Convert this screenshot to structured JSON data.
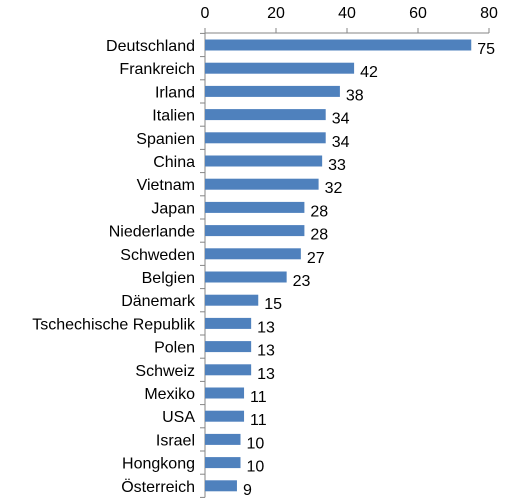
{
  "chart_data": {
    "type": "bar",
    "orientation": "horizontal",
    "x_axis_position": "top",
    "xlim": [
      0,
      80
    ],
    "xticks": [
      0,
      20,
      40,
      60,
      80
    ],
    "grid": false,
    "title": "",
    "xlabel": "",
    "ylabel": "",
    "categories": [
      "Deutschland",
      "Frankreich",
      "Irland",
      "Italien",
      "Spanien",
      "China",
      "Vietnam",
      "Japan",
      "Niederlande",
      "Schweden",
      "Belgien",
      "Dänemark",
      "Tschechische Republik",
      "Polen",
      "Schweiz",
      "Mexiko",
      "USA",
      "Israel",
      "Hongkong",
      "Österreich"
    ],
    "values": [
      75,
      42,
      38,
      34,
      34,
      33,
      32,
      28,
      28,
      27,
      23,
      15,
      13,
      13,
      13,
      11,
      11,
      10,
      10,
      9
    ],
    "bar_color": "#4F81BD"
  }
}
